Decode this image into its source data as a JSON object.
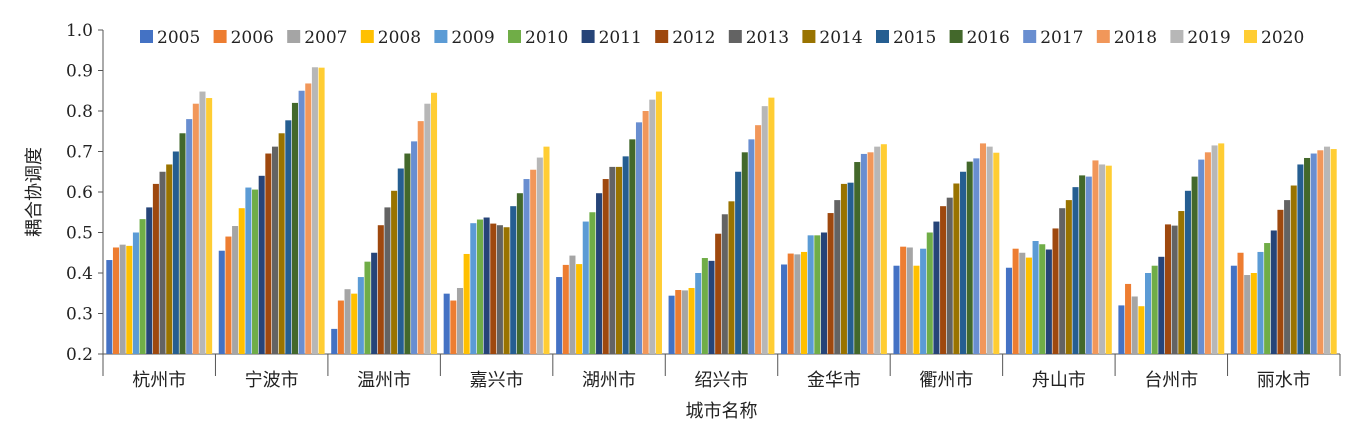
{
  "chart_data": {
    "type": "bar",
    "xlabel": "城市名称",
    "ylabel": "耦合协调度",
    "ylim": [
      0.2,
      1.0
    ],
    "yticks": [
      "0.2",
      "0.3",
      "0.4",
      "0.5",
      "0.6",
      "0.7",
      "0.8",
      "0.9",
      "1.0"
    ],
    "grid": false,
    "legend_position": "top",
    "categories": [
      "杭州市",
      "宁波市",
      "温州市",
      "嘉兴市",
      "湖州市",
      "绍兴市",
      "金华市",
      "衢州市",
      "舟山市",
      "台州市",
      "丽水市"
    ],
    "series": [
      {
        "name": "2005",
        "color": "#4472C4",
        "values": [
          0.432,
          0.455,
          0.262,
          0.349,
          0.39,
          0.344,
          0.421,
          0.418,
          0.413,
          0.32,
          0.418
        ]
      },
      {
        "name": "2006",
        "color": "#ED7D31",
        "values": [
          0.463,
          0.49,
          0.332,
          0.332,
          0.42,
          0.358,
          0.448,
          0.465,
          0.46,
          0.373,
          0.45
        ]
      },
      {
        "name": "2007",
        "color": "#A5A5A5",
        "values": [
          0.47,
          0.516,
          0.36,
          0.363,
          0.443,
          0.357,
          0.446,
          0.463,
          0.45,
          0.342,
          0.395
        ]
      },
      {
        "name": "2008",
        "color": "#FFC000",
        "values": [
          0.467,
          0.56,
          0.349,
          0.447,
          0.422,
          0.363,
          0.452,
          0.418,
          0.438,
          0.318,
          0.4
        ]
      },
      {
        "name": "2009",
        "color": "#5B9BD5",
        "values": [
          0.5,
          0.611,
          0.39,
          0.523,
          0.527,
          0.4,
          0.493,
          0.46,
          0.479,
          0.4,
          0.452
        ]
      },
      {
        "name": "2010",
        "color": "#70AD47",
        "values": [
          0.533,
          0.606,
          0.428,
          0.532,
          0.55,
          0.437,
          0.493,
          0.5,
          0.471,
          0.418,
          0.474
        ]
      },
      {
        "name": "2011",
        "color": "#264478",
        "values": [
          0.562,
          0.64,
          0.45,
          0.537,
          0.597,
          0.43,
          0.5,
          0.527,
          0.458,
          0.44,
          0.505
        ]
      },
      {
        "name": "2012",
        "color": "#9E480E",
        "values": [
          0.62,
          0.695,
          0.518,
          0.522,
          0.632,
          0.497,
          0.548,
          0.565,
          0.51,
          0.52,
          0.556
        ]
      },
      {
        "name": "2013",
        "color": "#636363",
        "values": [
          0.65,
          0.712,
          0.562,
          0.518,
          0.662,
          0.545,
          0.58,
          0.586,
          0.56,
          0.517,
          0.58
        ]
      },
      {
        "name": "2014",
        "color": "#997300",
        "values": [
          0.668,
          0.745,
          0.603,
          0.513,
          0.662,
          0.577,
          0.62,
          0.621,
          0.58,
          0.553,
          0.616
        ]
      },
      {
        "name": "2015",
        "color": "#255E91",
        "values": [
          0.7,
          0.777,
          0.658,
          0.565,
          0.688,
          0.65,
          0.623,
          0.65,
          0.612,
          0.603,
          0.668
        ]
      },
      {
        "name": "2016",
        "color": "#43682B",
        "values": [
          0.745,
          0.82,
          0.695,
          0.597,
          0.73,
          0.698,
          0.674,
          0.675,
          0.641,
          0.638,
          0.684
        ]
      },
      {
        "name": "2017",
        "color": "#698ED0",
        "values": [
          0.78,
          0.85,
          0.725,
          0.632,
          0.772,
          0.73,
          0.694,
          0.683,
          0.638,
          0.68,
          0.695
        ]
      },
      {
        "name": "2018",
        "color": "#F1975A",
        "values": [
          0.818,
          0.868,
          0.775,
          0.655,
          0.8,
          0.765,
          0.698,
          0.72,
          0.678,
          0.698,
          0.703
        ]
      },
      {
        "name": "2019",
        "color": "#B7B7B7",
        "values": [
          0.848,
          0.908,
          0.818,
          0.685,
          0.828,
          0.812,
          0.712,
          0.712,
          0.668,
          0.715,
          0.712
        ]
      },
      {
        "name": "2020",
        "color": "#FFCD33",
        "values": [
          0.832,
          0.907,
          0.845,
          0.712,
          0.848,
          0.833,
          0.718,
          0.697,
          0.665,
          0.72,
          0.706
        ]
      }
    ]
  }
}
